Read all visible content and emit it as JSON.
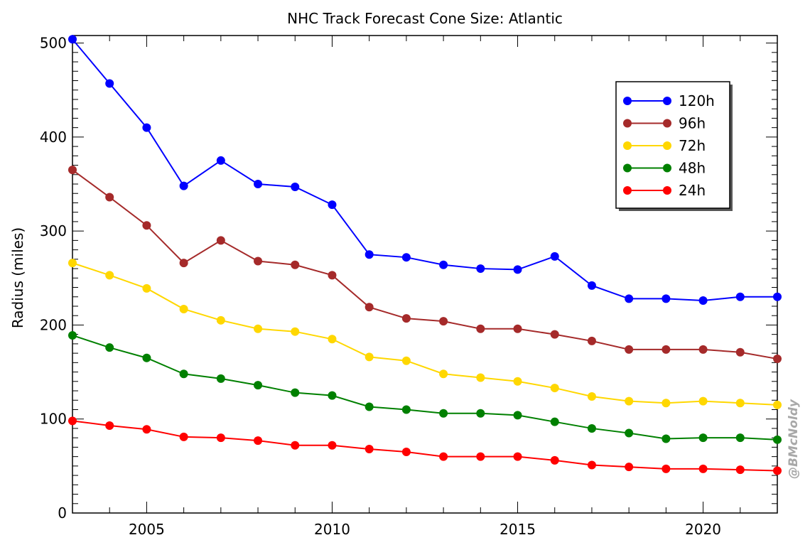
{
  "chart_data": {
    "type": "line",
    "title": "NHC Track Forecast Cone Size: Atlantic",
    "xlabel": "",
    "ylabel": "Radius (miles)",
    "xlim": [
      2003,
      2022
    ],
    "ylim": [
      0,
      508
    ],
    "xticks": [
      2005,
      2010,
      2015,
      2020
    ],
    "yticks": [
      0,
      100,
      200,
      300,
      400,
      500
    ],
    "grid": false,
    "legend_position": "top-right",
    "x": [
      2003,
      2004,
      2005,
      2006,
      2007,
      2008,
      2009,
      2010,
      2011,
      2012,
      2013,
      2014,
      2015,
      2016,
      2017,
      2018,
      2019,
      2020,
      2021,
      2022
    ],
    "series": [
      {
        "name": "120h",
        "color": "#0000ff",
        "values": [
          504,
          457,
          410,
          348,
          375,
          350,
          347,
          328,
          275,
          272,
          264,
          260,
          259,
          273,
          242,
          228,
          228,
          226,
          230,
          230
        ]
      },
      {
        "name": "96h",
        "color": "#a52a2a",
        "values": [
          365,
          336,
          306,
          266,
          290,
          268,
          264,
          253,
          219,
          207,
          204,
          196,
          196,
          190,
          183,
          174,
          174,
          174,
          171,
          164
        ]
      },
      {
        "name": "72h",
        "color": "#ffd700",
        "values": [
          266,
          253,
          239,
          217,
          205,
          196,
          193,
          185,
          166,
          162,
          148,
          144,
          140,
          133,
          124,
          119,
          117,
          119,
          117,
          115
        ]
      },
      {
        "name": "48h",
        "color": "#008000",
        "values": [
          189,
          176,
          165,
          148,
          143,
          136,
          128,
          125,
          113,
          110,
          106,
          106,
          104,
          97,
          90,
          85,
          79,
          80,
          80,
          78
        ]
      },
      {
        "name": "24h",
        "color": "#ff0000",
        "values": [
          98,
          93,
          89,
          81,
          80,
          77,
          72,
          72,
          68,
          65,
          60,
          60,
          60,
          56,
          51,
          49,
          47,
          47,
          46,
          45
        ]
      }
    ],
    "watermark": "@BMcNoldy"
  }
}
